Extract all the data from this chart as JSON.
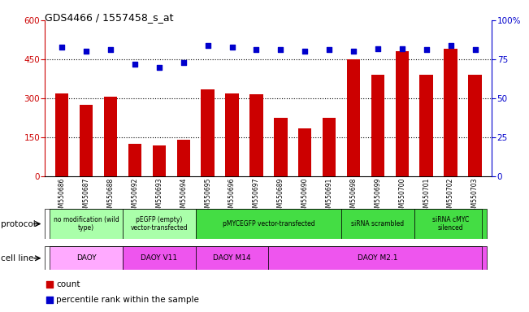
{
  "title": "GDS4466 / 1557458_s_at",
  "samples": [
    "GSM550686",
    "GSM550687",
    "GSM550688",
    "GSM550692",
    "GSM550693",
    "GSM550694",
    "GSM550695",
    "GSM550696",
    "GSM550697",
    "GSM550689",
    "GSM550690",
    "GSM550691",
    "GSM550698",
    "GSM550699",
    "GSM550700",
    "GSM550701",
    "GSM550702",
    "GSM550703"
  ],
  "counts": [
    320,
    275,
    305,
    125,
    120,
    140,
    335,
    320,
    315,
    225,
    185,
    225,
    450,
    390,
    480,
    390,
    490,
    390
  ],
  "percentiles": [
    83,
    80,
    81,
    72,
    70,
    73,
    84,
    83,
    81,
    81,
    80,
    81,
    80,
    82,
    82,
    81,
    84,
    81
  ],
  "ylim_left": [
    0,
    600
  ],
  "ylim_right": [
    0,
    100
  ],
  "yticks_left": [
    0,
    150,
    300,
    450,
    600
  ],
  "yticks_right": [
    0,
    25,
    50,
    75,
    100
  ],
  "bar_color": "#cc0000",
  "dot_color": "#0000cc",
  "protocol_groups": [
    {
      "label": "no modification (wild\ntype)",
      "start": 0,
      "end": 3,
      "color": "#aaffaa"
    },
    {
      "label": "pEGFP (empty)\nvector-transfected",
      "start": 3,
      "end": 6,
      "color": "#aaffaa"
    },
    {
      "label": "pMYCEGFP vector-transfected",
      "start": 6,
      "end": 12,
      "color": "#44dd44"
    },
    {
      "label": "siRNA scrambled",
      "start": 12,
      "end": 15,
      "color": "#44dd44"
    },
    {
      "label": "siRNA cMYC\nsilenced",
      "start": 15,
      "end": 18,
      "color": "#44dd44"
    }
  ],
  "cellline_groups": [
    {
      "label": "DAOY",
      "start": 0,
      "end": 3,
      "color": "#ffaaff"
    },
    {
      "label": "DAOY V11",
      "start": 3,
      "end": 6,
      "color": "#ee55ee"
    },
    {
      "label": "DAOY M14",
      "start": 6,
      "end": 9,
      "color": "#ee55ee"
    },
    {
      "label": "DAOY M2.1",
      "start": 9,
      "end": 18,
      "color": "#ee55ee"
    }
  ],
  "protocol_label": "protocol",
  "cellline_label": "cell line",
  "legend_count_label": "count",
  "legend_pct_label": "percentile rank within the sample",
  "bg_color": "#ffffff",
  "axis_color_left": "#cc0000",
  "axis_color_right": "#0000cc",
  "chart_bg": "#ffffff",
  "tick_label_bg": "#cccccc"
}
